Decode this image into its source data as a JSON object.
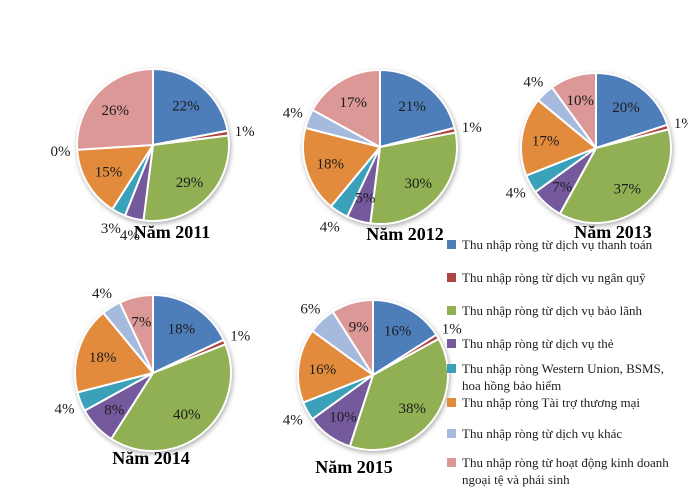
{
  "chart_data": {
    "type": "pie",
    "note": "Five pie charts sharing one legend; values are percent shares per year",
    "categories": [
      "Thu nhập ròng từ dịch vụ thanh toán",
      "Thu nhập ròng từ dịch vụ ngân quỹ",
      "Thu nhập ròng từ dịch vụ bảo lãnh",
      "Thu nhập ròng từ dịch vụ thẻ",
      "Thu nhập ròng Western Union, BSMS, hoa hồng bảo hiểm",
      "Thu nhập ròng Tài trợ thương mại",
      "Thu nhập ròng từ dịch vụ khác",
      "Thu nhập ròng từ hoạt động kinh doanh ngoại tệ và phái sinh"
    ],
    "colors": [
      "#4D7EBA",
      "#AC4441",
      "#91AF53",
      "#75599D",
      "#3BA0BA",
      "#E38B3D",
      "#A6BADE",
      "#DC9896"
    ],
    "legend_position": "right-bottom",
    "start_angle": "top",
    "direction": "clockwise",
    "charts": [
      {
        "title": "Năm 2011",
        "values": [
          22,
          1,
          29,
          4,
          3,
          15,
          0,
          26
        ],
        "data_labels": [
          "22%",
          "1%",
          "29%",
          "4%",
          "3%",
          "15%",
          "0%",
          "26%"
        ],
        "label_placement": [
          "in",
          "out",
          "in",
          "out",
          "out",
          "in",
          "out",
          "in"
        ]
      },
      {
        "title": "Năm 2012",
        "values": [
          21,
          1,
          30,
          5,
          4,
          18,
          4,
          17
        ],
        "data_labels": [
          "21%",
          "1%",
          "30%",
          "5%",
          "4%",
          "18%",
          "4%",
          "17%"
        ],
        "label_placement": [
          "in",
          "out",
          "in",
          "in",
          "out",
          "in",
          "out",
          "in"
        ]
      },
      {
        "title": "Năm 2013",
        "values": [
          20,
          1,
          37,
          7,
          4,
          17,
          4,
          10
        ],
        "data_labels": [
          "20%",
          "1%",
          "37%",
          "7%",
          "4%",
          "17%",
          "4%",
          "10%"
        ],
        "label_placement": [
          "in",
          "out",
          "in",
          "in",
          "out",
          "in",
          "out",
          "in"
        ]
      },
      {
        "title": "Năm 2014",
        "values": [
          18,
          1,
          40,
          8,
          4,
          18,
          4,
          7
        ],
        "data_labels": [
          "18%",
          "1%",
          "40%",
          "8%",
          "4%",
          "18%",
          "4%",
          "7%"
        ],
        "label_placement": [
          "in",
          "out",
          "in",
          "in",
          "out",
          "in",
          "out",
          "in"
        ]
      },
      {
        "title": "Năm 2015",
        "values": [
          16,
          1,
          38,
          10,
          4,
          16,
          6,
          9
        ],
        "data_labels": [
          "16%",
          "1%",
          "38%",
          "10%",
          "4%",
          "16%",
          "6%",
          "9%"
        ],
        "label_placement": [
          "in",
          "out",
          "in",
          "in",
          "out",
          "in",
          "out",
          "in"
        ]
      }
    ]
  }
}
